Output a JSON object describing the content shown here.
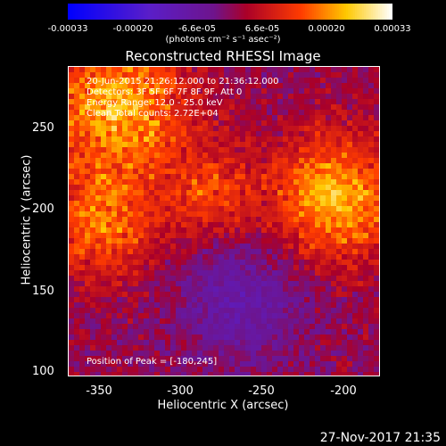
{
  "colorbar": {
    "ticks": [
      "-0.00033",
      "-0.00020",
      "-6.6e-05",
      "6.6e-05",
      "0.00020",
      "0.00033"
    ],
    "units": "(photons cm⁻² s⁻¹ asec⁻²)",
    "colormap": "blue-purple-red-yellow-white"
  },
  "plot": {
    "title": "Reconstructed RHESSI Image",
    "info": [
      "20-Jun-2015 21:26:12.000 to 21:36:12.000",
      "Detectors: 3F 5F 6F 7F 8F 9F, Att 0",
      "Energy Range: 12.0 - 25.0 keV",
      "Clean     Total counts: 2.72E+04"
    ],
    "peak_text": "Position of Peak = [-180,245]",
    "xlabel": "Heliocentric X (arcsec)",
    "ylabel": "Heliocentric Y (arcsec)",
    "xticks": [
      "-350",
      "-300",
      "-250",
      "-200"
    ],
    "yticks": [
      "250",
      "200",
      "150",
      "100"
    ],
    "xrange": [
      -365,
      -175
    ],
    "yrange": [
      97,
      283
    ]
  },
  "timestamp": "27-Nov-2017 21:35"
}
